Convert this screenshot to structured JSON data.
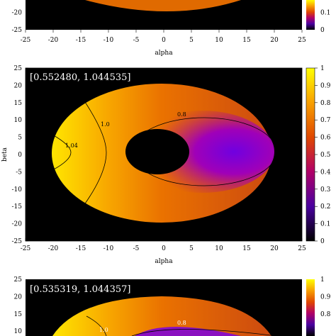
{
  "chart_data": [
    {
      "type": "heatmap",
      "panel": "top",
      "title": "",
      "xlabel": "alpha",
      "ylabel": "",
      "xlim": [
        -25,
        25
      ],
      "ylim": [
        -25,
        25
      ],
      "visible_yrange": [
        -25,
        -15
      ],
      "x_ticks": [
        -25,
        -20,
        -15,
        -10,
        -5,
        0,
        5,
        10,
        15,
        20,
        25
      ],
      "y_ticks_visible": [
        -20,
        -25
      ],
      "colorbar_ticks_visible": [
        0.1,
        0
      ],
      "colormap": [
        "#000000",
        "#5a00a0",
        "#b00068",
        "#e05000",
        "#f8a000",
        "#ffff00"
      ]
    },
    {
      "type": "heatmap",
      "panel": "middle",
      "annotation": "[0.552480,  1.044535]",
      "xlabel": "alpha",
      "ylabel": "beta",
      "xlim": [
        -25,
        25
      ],
      "ylim": [
        -25,
        25
      ],
      "x_ticks": [
        -25,
        -20,
        -15,
        -10,
        -5,
        0,
        5,
        10,
        15,
        20,
        25
      ],
      "y_ticks": [
        25,
        20,
        15,
        10,
        5,
        0,
        -5,
        -10,
        -15,
        -20,
        -25
      ],
      "colorbar_range": [
        0,
        1
      ],
      "colorbar_ticks": [
        0,
        0.1,
        0.2,
        0.3,
        0.4,
        0.5,
        0.6,
        0.7,
        0.8,
        0.9,
        1
      ],
      "contour_labels": [
        "1.0",
        "1.04",
        "0.8"
      ],
      "colormap": [
        "#000000",
        "#5a00a0",
        "#b00068",
        "#e05000",
        "#f8a000",
        "#ffff00"
      ]
    },
    {
      "type": "heatmap",
      "panel": "bottom",
      "annotation": "[0.535319,  1.044357]",
      "xlabel": "",
      "ylabel": "",
      "xlim": [
        -25,
        25
      ],
      "ylim": [
        -25,
        25
      ],
      "y_ticks_visible": [
        25,
        20,
        15,
        10
      ],
      "colorbar_ticks_visible": [
        1,
        0.9,
        0.8
      ],
      "contour_labels": [
        "1.0",
        "0.8"
      ],
      "colormap": [
        "#000000",
        "#5a00a0",
        "#b00068",
        "#e05000",
        "#f8a000",
        "#ffff00"
      ]
    }
  ]
}
